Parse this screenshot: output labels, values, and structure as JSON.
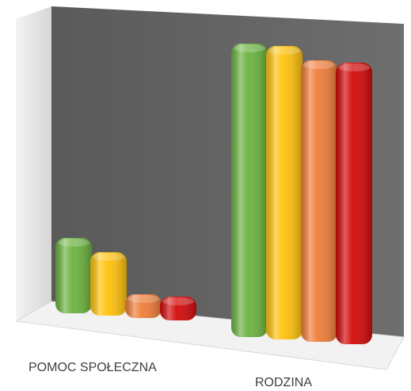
{
  "chart_data": {
    "type": "bar",
    "categories": [
      "POMOC SPOŁECZNA",
      "RODZINA"
    ],
    "series": [
      {
        "values": [
          95,
          370
        ]
      },
      {
        "values": [
          80,
          370
        ]
      },
      {
        "values": [
          30,
          355
        ]
      },
      {
        "values": [
          30,
          355
        ]
      }
    ],
    "series_colors": [
      "#6bb33f",
      "#ffc20e",
      "#ef7d3a",
      "#d20a0a"
    ],
    "title": "",
    "xlabel": "",
    "ylabel": "",
    "grid": false,
    "legend": "none",
    "style": "3d-clustered-column"
  }
}
